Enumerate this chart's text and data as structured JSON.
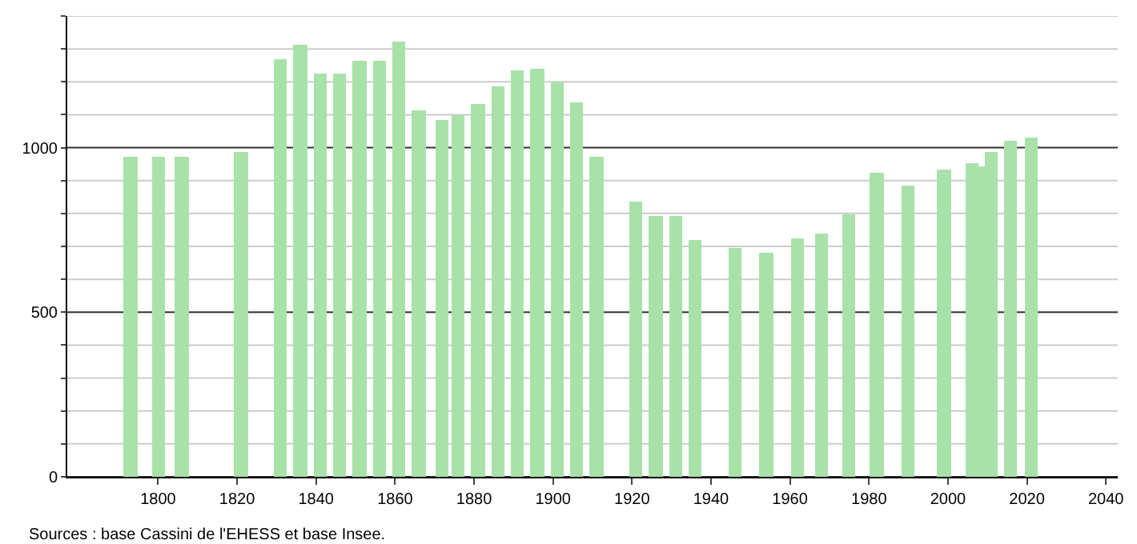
{
  "chart_data": {
    "type": "bar",
    "color": "#a8e2a8",
    "x": [
      1793,
      1800,
      1806,
      1821,
      1831,
      1836,
      1841,
      1846,
      1851,
      1856,
      1861,
      1866,
      1872,
      1876,
      1881,
      1886,
      1891,
      1896,
      1901,
      1906,
      1911,
      1921,
      1926,
      1931,
      1936,
      1946,
      1954,
      1962,
      1968,
      1975,
      1982,
      1990,
      1999,
      2006,
      2008,
      2011,
      2016,
      2021
    ],
    "values": [
      973,
      973,
      973,
      985,
      1268,
      1311,
      1223,
      1223,
      1263,
      1263,
      1321,
      1113,
      1084,
      1100,
      1132,
      1185,
      1234,
      1242,
      1202,
      1137,
      973,
      834,
      790,
      790,
      718,
      694,
      681,
      726,
      740,
      795,
      924,
      885,
      932,
      955,
      942,
      985,
      1019,
      1032
    ],
    "xlim": [
      1777,
      2043
    ],
    "xticks": [
      1800,
      1820,
      1840,
      1860,
      1880,
      1900,
      1920,
      1940,
      1960,
      1980,
      2000,
      2020,
      2040
    ],
    "ylim": [
      0,
      1400
    ],
    "yticks": [
      0,
      {
        "value": 100,
        "label": null
      },
      {
        "value": 200,
        "label": null
      },
      {
        "value": 300,
        "label": null
      },
      {
        "value": 400,
        "label": null
      },
      500,
      {
        "value": 600,
        "label": null
      },
      {
        "value": 700,
        "label": null
      },
      {
        "value": 800,
        "label": null
      },
      {
        "value": 900,
        "label": null
      },
      1000,
      {
        "value": 1100,
        "label": null
      },
      {
        "value": 1200,
        "label": null
      },
      {
        "value": 1300,
        "label": null
      },
      {
        "value": 1400,
        "label": null
      }
    ],
    "grid": "y",
    "annotations": [
      "Sources : base Cassini de l'EHESS et base Insee."
    ]
  }
}
